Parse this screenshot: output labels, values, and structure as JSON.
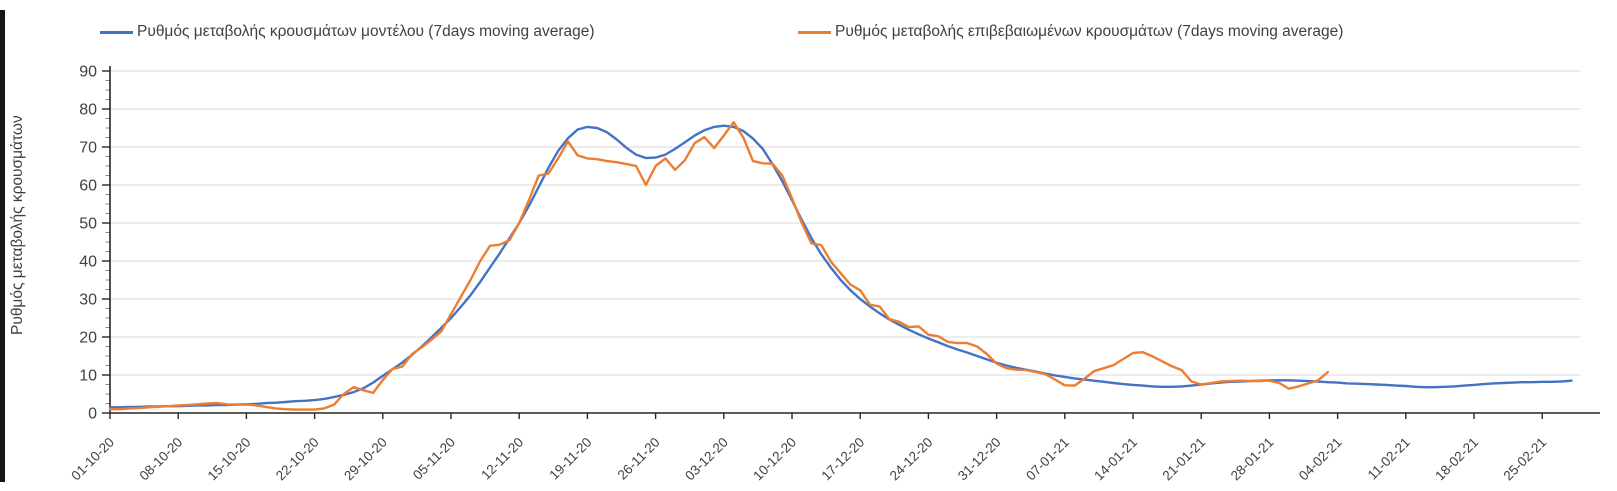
{
  "page": {
    "background": "#ffffff"
  },
  "y_axis": {
    "title": "Ρυθμός μεταβολής κρουσμάτων",
    "tick_labels": [
      "0",
      "10",
      "20",
      "30",
      "40",
      "50",
      "60",
      "70",
      "80",
      "90"
    ],
    "min": 0,
    "max": 90,
    "major_step": 10,
    "minor_step": 2.5
  },
  "x_axis": {
    "tick_labels": [
      "01-10-20",
      "08-10-20",
      "15-10-20",
      "22-10-20",
      "29-10-20",
      "05-11-20",
      "12-11-20",
      "19-11-20",
      "26-11-20",
      "03-12-20",
      "10-12-20",
      "17-12-20",
      "24-12-20",
      "31-12-20",
      "07-01-21",
      "14-01-21",
      "21-01-21",
      "28-01-21",
      "04-02-21",
      "11-02-21",
      "18-02-21",
      "25-02-21"
    ],
    "tick_step_days": 7
  },
  "chart_data": {
    "type": "line",
    "title": "",
    "xlabel": "",
    "ylabel": "Ρυθμός μεταβολής κρουσμάτων",
    "ylim": [
      0,
      90
    ],
    "grid": "horizontal",
    "grid_color": "#d9d9d9",
    "axis_color": "#262626",
    "text_color": "#404040",
    "legend_position": "top",
    "x_unit": "days since 01-10-20, one point per day",
    "x_tick_labels": [
      "01-10-20",
      "08-10-20",
      "15-10-20",
      "22-10-20",
      "29-10-20",
      "05-11-20",
      "12-11-20",
      "19-11-20",
      "26-11-20",
      "03-12-20",
      "10-12-20",
      "17-12-20",
      "24-12-20",
      "31-12-20",
      "07-01-21",
      "14-01-21",
      "21-01-21",
      "28-01-21",
      "04-02-21",
      "11-02-21",
      "18-02-21",
      "25-02-21"
    ],
    "series": [
      {
        "name": "Ρυθμός μεταβολής κρουσμάτων μοντέλου (7days moving average)",
        "color": "#4472C4",
        "start_day": 0,
        "values": [
          1.5,
          1.5,
          1.6,
          1.6,
          1.7,
          1.7,
          1.8,
          1.8,
          1.9,
          2.0,
          2.0,
          2.1,
          2.1,
          2.2,
          2.3,
          2.4,
          2.6,
          2.7,
          2.9,
          3.1,
          3.2,
          3.4,
          3.7,
          4.2,
          4.8,
          5.5,
          6.5,
          8.0,
          9.8,
          11.5,
          13.3,
          15.3,
          17.5,
          19.9,
          22.4,
          25.0,
          27.9,
          31.0,
          34.5,
          38.3,
          42.0,
          46.0,
          50.0,
          54.5,
          59.5,
          64.5,
          69.0,
          72.3,
          74.6,
          75.3,
          75.0,
          73.9,
          72.0,
          69.8,
          68.0,
          67.1,
          67.2,
          68.0,
          69.5,
          71.2,
          73.0,
          74.4,
          75.3,
          75.6,
          75.3,
          74.2,
          72.2,
          69.5,
          65.5,
          61.0,
          56.0,
          50.8,
          46.0,
          41.8,
          38.2,
          35.0,
          32.3,
          30.0,
          28.0,
          26.2,
          24.6,
          23.2,
          21.9,
          20.7,
          19.6,
          18.6,
          17.6,
          16.7,
          15.9,
          15.0,
          14.1,
          13.2,
          12.5,
          11.9,
          11.4,
          10.9,
          10.4,
          9.9,
          9.5,
          9.1,
          8.8,
          8.5,
          8.2,
          7.9,
          7.6,
          7.4,
          7.2,
          7.0,
          6.9,
          6.9,
          7.0,
          7.2,
          7.5,
          7.8,
          8.0,
          8.2,
          8.3,
          8.4,
          8.5,
          8.6,
          8.6,
          8.6,
          8.5,
          8.4,
          8.3,
          8.1,
          8.0,
          7.8,
          7.7,
          7.6,
          7.5,
          7.4,
          7.2,
          7.1,
          6.9,
          6.8,
          6.8,
          6.9,
          7.0,
          7.2,
          7.4,
          7.6,
          7.8,
          7.9,
          8.0,
          8.1,
          8.1,
          8.2,
          8.2,
          8.3,
          8.5
        ]
      },
      {
        "name": "Ρυθμός μεταβολής επιβεβαιωμένων κρουσμάτων (7days moving average)",
        "color": "#ED7D31",
        "start_day": 0,
        "values": [
          1.0,
          1.0,
          1.2,
          1.3,
          1.5,
          1.7,
          1.8,
          2.0,
          2.1,
          2.3,
          2.5,
          2.6,
          2.3,
          2.2,
          2.2,
          2.0,
          1.6,
          1.2,
          1.0,
          0.9,
          0.9,
          0.9,
          1.2,
          2.2,
          5.0,
          6.8,
          6.0,
          5.3,
          8.7,
          11.6,
          12.2,
          15.5,
          17.3,
          19.3,
          21.5,
          26.0,
          30.5,
          35.0,
          40.0,
          44.0,
          44.3,
          45.5,
          50.0,
          56.0,
          62.5,
          63.0,
          67.0,
          71.5,
          67.8,
          67.0,
          66.8,
          66.3,
          66.0,
          65.5,
          65.0,
          60.0,
          65.0,
          67.0,
          64.0,
          66.5,
          71.0,
          72.6,
          69.7,
          73.0,
          76.5,
          72.5,
          66.3,
          65.7,
          65.6,
          62.5,
          56.5,
          50.0,
          44.6,
          44.2,
          39.8,
          36.8,
          33.8,
          32.3,
          28.5,
          28.0,
          24.7,
          24.0,
          22.6,
          22.8,
          20.6,
          20.2,
          18.7,
          18.4,
          18.4,
          17.5,
          15.5,
          13.0,
          11.8,
          11.4,
          11.3,
          10.8,
          10.2,
          8.8,
          7.3,
          7.2,
          9.0,
          11.0,
          11.8,
          12.6,
          14.2,
          15.8,
          16.0,
          14.9,
          13.6,
          12.3,
          11.3,
          8.3,
          7.5,
          7.9,
          8.3,
          8.4,
          8.5,
          8.4,
          8.4,
          8.5,
          7.9,
          6.4,
          7.0,
          7.8,
          8.6,
          10.8
        ]
      }
    ]
  }
}
